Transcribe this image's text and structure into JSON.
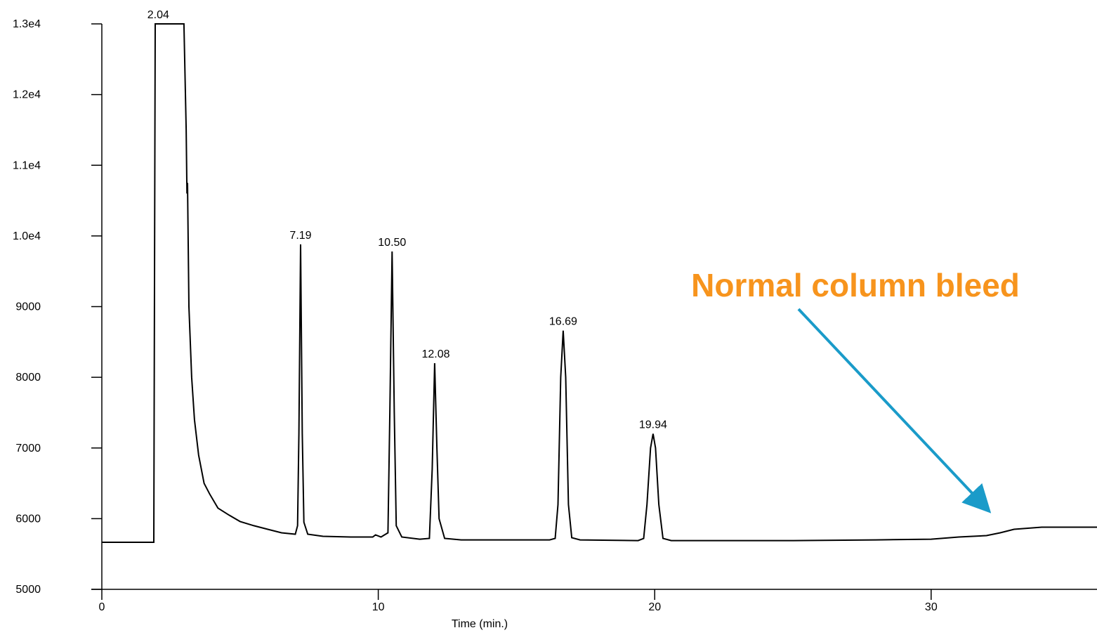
{
  "chart_data": {
    "type": "line",
    "color": "#000000",
    "x_label": "Time (min.)",
    "xlim": [
      0,
      36
    ],
    "xticks": [
      0,
      10,
      20,
      30
    ],
    "ylim": [
      5000,
      13000
    ],
    "yticks": [
      5000,
      6000,
      7000,
      8000,
      9000,
      {
        "value": 10000,
        "label": "1.0e4"
      },
      {
        "value": 11000,
        "label": "1.1e4"
      },
      {
        "value": 12000,
        "label": "1.2e4"
      },
      {
        "value": 13000,
        "label": "1.3e4"
      }
    ],
    "x": [
      0,
      1.88,
      1.93,
      2.97,
      3.05,
      3.08,
      3.1,
      3.15,
      3.25,
      3.35,
      3.5,
      3.7,
      3.9,
      4.2,
      4.6,
      5.0,
      5.5,
      6.0,
      6.5,
      7.0,
      7.08,
      7.13,
      7.19,
      7.25,
      7.31,
      7.45,
      8.0,
      9.0,
      9.8,
      9.9,
      10.1,
      10.35,
      10.42,
      10.5,
      10.58,
      10.65,
      10.85,
      11.5,
      11.85,
      11.95,
      12.04,
      12.12,
      12.2,
      12.4,
      13.0,
      16.2,
      16.4,
      16.5,
      16.6,
      16.69,
      16.78,
      16.88,
      17.0,
      17.3,
      19.4,
      19.6,
      19.72,
      19.85,
      19.94,
      20.03,
      20.15,
      20.3,
      20.6,
      25,
      28,
      30,
      31,
      32,
      32.5,
      33,
      33.5,
      34,
      36
    ],
    "values": [
      5666,
      5666,
      13000,
      13000,
      11500,
      10600,
      10750,
      9000,
      8000,
      7400,
      6900,
      6500,
      6350,
      6150,
      6050,
      5960,
      5900,
      5850,
      5800,
      5780,
      5900,
      7200,
      9880,
      7200,
      5950,
      5780,
      5750,
      5740,
      5740,
      5770,
      5740,
      5800,
      7500,
      9780,
      7500,
      5900,
      5740,
      5710,
      5720,
      6700,
      8200,
      7000,
      6000,
      5720,
      5700,
      5700,
      5720,
      6200,
      8000,
      8660,
      8000,
      6200,
      5730,
      5700,
      5690,
      5720,
      6200,
      7000,
      7200,
      7000,
      6200,
      5720,
      5690,
      5690,
      5700,
      5710,
      5740,
      5760,
      5800,
      5850,
      5865,
      5880,
      5880
    ],
    "peaks": [
      {
        "label": "2.04",
        "x": 2.04,
        "y": 13000
      },
      {
        "label": "7.19",
        "x": 7.19,
        "y": 9880
      },
      {
        "label": "10.50",
        "x": 10.5,
        "y": 9780
      },
      {
        "label": "12.08",
        "x": 12.08,
        "y": 8200
      },
      {
        "label": "16.69",
        "x": 16.69,
        "y": 8660
      },
      {
        "label": "19.94",
        "x": 19.94,
        "y": 7200
      }
    ],
    "annotation": "Normal column bleed"
  }
}
